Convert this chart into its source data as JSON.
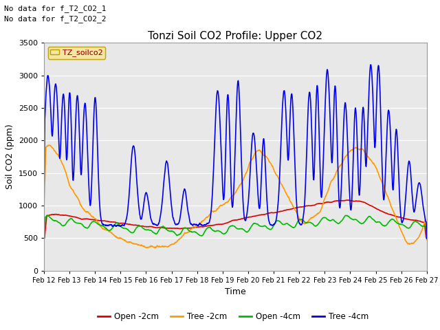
{
  "title": "Tonzi Soil CO2 Profile: Upper CO2",
  "ylabel": "Soil CO2 (ppm)",
  "xlabel": "Time",
  "top_note1": "No data for f_T2_CO2_1",
  "top_note2": "No data for f_T2_CO2_2",
  "legend_label": "TZ_soilco2",
  "ylim": [
    0,
    3500
  ],
  "yticks": [
    0,
    500,
    1000,
    1500,
    2000,
    2500,
    3000,
    3500
  ],
  "xtick_labels": [
    "Feb 12",
    "Feb 13",
    "Feb 14",
    "Feb 15",
    "Feb 16",
    "Feb 17",
    "Feb 18",
    "Feb 19",
    "Feb 20",
    "Feb 21",
    "Feb 22",
    "Feb 23",
    "Feb 24",
    "Feb 25",
    "Feb 26",
    "Feb 27"
  ],
  "series": {
    "open_2cm": {
      "label": "Open -2cm",
      "color": "#dd0000",
      "linewidth": 1.2
    },
    "tree_2cm": {
      "label": "Tree -2cm",
      "color": "#ff9900",
      "linewidth": 1.2
    },
    "open_4cm": {
      "label": "Open -4cm",
      "color": "#00bb00",
      "linewidth": 1.2
    },
    "tree_4cm": {
      "label": "Tree -4cm",
      "color": "#0000ee",
      "linewidth": 1.2
    }
  },
  "background_color": "#ffffff",
  "plot_bg_color": "#e8e8e8",
  "grid_color": "#ffffff",
  "fig_width": 6.4,
  "fig_height": 4.8,
  "dpi": 100
}
